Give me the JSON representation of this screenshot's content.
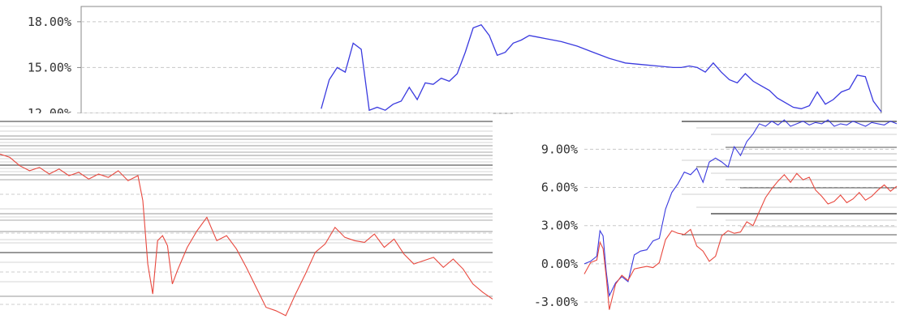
{
  "chart_data": [
    {
      "type": "line",
      "panel": "top",
      "y_ticks": [
        "18.00%",
        "15.00%",
        "12.00%"
      ],
      "y_tick_values": [
        18,
        15,
        12
      ],
      "ylim": [
        12,
        19
      ],
      "xlim": [
        0,
        1
      ],
      "grid": true,
      "colors": {
        "series": "#3a3adf"
      },
      "series": [
        {
          "values_x": [
            0.3,
            0.31,
            0.32,
            0.33,
            0.34,
            0.35,
            0.36,
            0.37,
            0.38,
            0.39,
            0.4,
            0.41,
            0.42,
            0.43,
            0.44,
            0.45,
            0.46,
            0.47,
            0.48,
            0.49,
            0.5,
            0.51,
            0.52,
            0.53,
            0.54,
            0.55,
            0.56,
            0.57,
            0.58,
            0.6,
            0.62,
            0.64,
            0.66,
            0.68,
            0.7,
            0.72,
            0.74,
            0.75,
            0.76,
            0.77,
            0.78,
            0.79,
            0.8,
            0.81,
            0.82,
            0.83,
            0.84,
            0.85,
            0.86,
            0.87,
            0.88,
            0.89,
            0.9,
            0.91,
            0.92,
            0.93,
            0.94,
            0.95,
            0.96,
            0.97,
            0.98,
            0.99,
            1.0
          ],
          "values_y": [
            12.3,
            14.2,
            15.0,
            14.7,
            16.6,
            16.2,
            12.2,
            12.4,
            12.2,
            12.6,
            12.8,
            13.7,
            12.9,
            14.0,
            13.9,
            14.3,
            14.1,
            14.6,
            16.0,
            17.6,
            17.8,
            17.1,
            15.8,
            16.0,
            16.6,
            16.8,
            17.1,
            17.0,
            16.9,
            16.7,
            16.4,
            16.0,
            15.6,
            15.3,
            15.2,
            15.1,
            15.0,
            15.0,
            15.1,
            15.0,
            14.7,
            15.3,
            14.7,
            14.2,
            14.0,
            14.6,
            14.1,
            13.8,
            13.5,
            13.0,
            12.7,
            12.4,
            12.3,
            12.5,
            13.4,
            12.6,
            12.9,
            13.4,
            13.6,
            14.5,
            14.4,
            12.8,
            12.1
          ]
        }
      ]
    },
    {
      "type": "line",
      "panel": "bottom-left",
      "y_ticks": [],
      "ylim": [
        -4,
        8
      ],
      "xlim": [
        0,
        1
      ],
      "grid": true,
      "colors": {
        "series": "#e8483e"
      },
      "series": [
        {
          "values_x": [
            0.0,
            0.02,
            0.04,
            0.06,
            0.08,
            0.1,
            0.12,
            0.14,
            0.16,
            0.18,
            0.2,
            0.22,
            0.24,
            0.26,
            0.28,
            0.29,
            0.3,
            0.31,
            0.32,
            0.33,
            0.34,
            0.35,
            0.36,
            0.37,
            0.38,
            0.4,
            0.42,
            0.44,
            0.46,
            0.48,
            0.5,
            0.52,
            0.54,
            0.56,
            0.58,
            0.6,
            0.62,
            0.64,
            0.66,
            0.68,
            0.7,
            0.72,
            0.74,
            0.76,
            0.78,
            0.8,
            0.82,
            0.84,
            0.86,
            0.88,
            0.9,
            0.92,
            0.94,
            0.96,
            0.98,
            1.0
          ],
          "values_y": [
            5.8,
            5.6,
            5.1,
            4.8,
            5.0,
            4.6,
            4.9,
            4.5,
            4.7,
            4.3,
            4.6,
            4.4,
            4.8,
            4.2,
            4.5,
            3.0,
            -0.8,
            -2.6,
            0.6,
            0.9,
            0.3,
            -2.0,
            -1.2,
            -0.5,
            0.2,
            1.2,
            2.0,
            0.6,
            0.9,
            0.1,
            -1.0,
            -2.2,
            -3.4,
            -3.6,
            -3.9,
            -2.6,
            -1.4,
            -0.1,
            0.4,
            1.4,
            0.8,
            0.6,
            0.5,
            1.0,
            0.2,
            0.7,
            -0.2,
            -0.8,
            -0.6,
            -0.4,
            -1.0,
            -0.5,
            -1.1,
            -2.0,
            -2.5,
            -2.9
          ]
        }
      ]
    },
    {
      "type": "line",
      "panel": "bottom-right",
      "y_ticks": [
        "9.00%",
        "6.00%",
        "3.00%",
        "0.00%",
        "-3.00%"
      ],
      "y_tick_values": [
        9,
        6,
        3,
        0,
        -3
      ],
      "ylim": [
        -4.2,
        11.5
      ],
      "xlim": [
        0,
        1
      ],
      "grid": true,
      "colors": {
        "series_1": "#3a3adf",
        "series_2": "#e8483e"
      },
      "series": [
        {
          "values_x": [
            0.0,
            0.02,
            0.04,
            0.05,
            0.06,
            0.07,
            0.08,
            0.1,
            0.12,
            0.14,
            0.16,
            0.18,
            0.2,
            0.22,
            0.24,
            0.26,
            0.28,
            0.3,
            0.32,
            0.34,
            0.36,
            0.38,
            0.4,
            0.42,
            0.44,
            0.46,
            0.48,
            0.5,
            0.52,
            0.54,
            0.56,
            0.58,
            0.6,
            0.62,
            0.64,
            0.66,
            0.68,
            0.7,
            0.72,
            0.74,
            0.76,
            0.78,
            0.8,
            0.82,
            0.84,
            0.86,
            0.88,
            0.9,
            0.92,
            0.94,
            0.96,
            0.98,
            1.0
          ],
          "values_y": [
            0.0,
            0.2,
            0.6,
            2.6,
            2.2,
            -0.6,
            -2.5,
            -1.5,
            -1.0,
            -1.4,
            0.7,
            1.0,
            1.1,
            1.8,
            2.0,
            4.3,
            5.6,
            6.3,
            7.2,
            7.0,
            7.5,
            6.4,
            8.0,
            8.3,
            8.0,
            7.6,
            9.2,
            8.5,
            9.6,
            10.2,
            11.0,
            10.8,
            11.2,
            10.9,
            11.3,
            10.8,
            11.0,
            11.2,
            10.9,
            11.1,
            11.0,
            11.3,
            10.8,
            11.0,
            10.9,
            11.2,
            11.0,
            10.8,
            11.1,
            11.0,
            10.9,
            11.2,
            11.0
          ]
        },
        {
          "values_x": [
            0.0,
            0.02,
            0.04,
            0.05,
            0.06,
            0.07,
            0.08,
            0.1,
            0.12,
            0.14,
            0.16,
            0.18,
            0.2,
            0.22,
            0.24,
            0.26,
            0.28,
            0.3,
            0.32,
            0.34,
            0.36,
            0.38,
            0.4,
            0.42,
            0.44,
            0.46,
            0.48,
            0.5,
            0.52,
            0.54,
            0.56,
            0.58,
            0.6,
            0.62,
            0.64,
            0.66,
            0.68,
            0.7,
            0.72,
            0.74,
            0.76,
            0.78,
            0.8,
            0.82,
            0.84,
            0.86,
            0.88,
            0.9,
            0.92,
            0.94,
            0.96,
            0.98,
            1.0
          ],
          "values_y": [
            -0.8,
            0.1,
            0.3,
            1.7,
            1.2,
            -1.0,
            -3.6,
            -1.6,
            -0.9,
            -1.3,
            -0.4,
            -0.3,
            -0.2,
            -0.3,
            0.1,
            1.9,
            2.6,
            2.4,
            2.3,
            2.7,
            1.4,
            1.0,
            0.2,
            0.6,
            2.2,
            2.6,
            2.4,
            2.5,
            3.3,
            3.0,
            4.1,
            5.2,
            5.9,
            6.5,
            7.0,
            6.4,
            7.1,
            6.6,
            6.8,
            5.8,
            5.3,
            4.7,
            4.9,
            5.4,
            4.8,
            5.1,
            5.6,
            5.0,
            5.3,
            5.8,
            6.2,
            5.7,
            6.1
          ]
        }
      ]
    }
  ]
}
